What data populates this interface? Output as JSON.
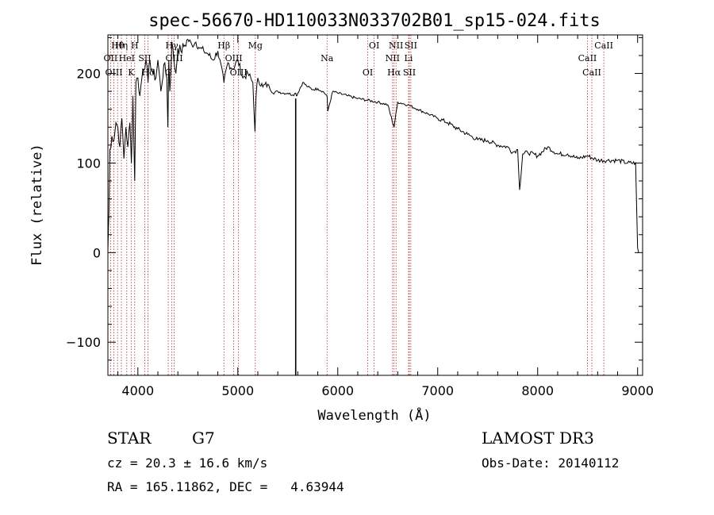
{
  "chart_data": {
    "type": "line",
    "title": "spec-56670-HD110033N033702B01_sp15-024.fits",
    "xlabel": "Wavelength (Å)",
    "ylabel": "Flux (relative)",
    "xlim": [
      3700,
      9050
    ],
    "ylim": [
      -137,
      243
    ],
    "xticks": [
      4000,
      5000,
      6000,
      7000,
      8000,
      9000
    ],
    "yticks": [
      -100,
      0,
      100,
      200
    ],
    "grid": false,
    "series": [
      {
        "name": "spectrum",
        "x": [
          3700,
          3710,
          3720,
          3740,
          3760,
          3780,
          3800,
          3820,
          3840,
          3860,
          3880,
          3900,
          3920,
          3935,
          3950,
          3968,
          3980,
          4000,
          4020,
          4050,
          4080,
          4102,
          4120,
          4150,
          4180,
          4200,
          4230,
          4260,
          4290,
          4300,
          4310,
          4320,
          4340,
          4360,
          4380,
          4400,
          4430,
          4460,
          4500,
          4540,
          4580,
          4620,
          4660,
          4700,
          4750,
          4800,
          4861,
          4900,
          4950,
          5000,
          5050,
          5100,
          5150,
          5172,
          5183,
          5200,
          5250,
          5300,
          5350,
          5400,
          5450,
          5500,
          5550,
          5580,
          5590,
          5600,
          5650,
          5700,
          5750,
          5800,
          5850,
          5893,
          5900,
          5950,
          6000,
          6100,
          6200,
          6300,
          6400,
          6500,
          6563,
          6600,
          6700,
          6800,
          6900,
          7000,
          7100,
          7200,
          7300,
          7400,
          7500,
          7600,
          7700,
          7750,
          7800,
          7820,
          7850,
          7900,
          8000,
          8100,
          8200,
          8300,
          8400,
          8500,
          8600,
          8700,
          8800,
          8900,
          8980,
          9000,
          9010
        ],
        "values": [
          2,
          45,
          115,
          130,
          125,
          145,
          140,
          118,
          150,
          105,
          140,
          118,
          145,
          100,
          175,
          80,
          190,
          195,
          175,
          205,
          215,
          190,
          215,
          200,
          195,
          215,
          180,
          210,
          195,
          140,
          215,
          180,
          235,
          215,
          200,
          228,
          225,
          230,
          238,
          232,
          235,
          228,
          225,
          222,
          215,
          225,
          190,
          212,
          205,
          215,
          195,
          200,
          190,
          135,
          175,
          195,
          185,
          188,
          178,
          180,
          178,
          178,
          176,
          178,
          175,
          178,
          190,
          185,
          182,
          183,
          180,
          175,
          158,
          180,
          178,
          175,
          172,
          170,
          168,
          165,
          140,
          168,
          165,
          160,
          155,
          150,
          145,
          138,
          132,
          126,
          125,
          120,
          118,
          112,
          115,
          70,
          110,
          112,
          108,
          118,
          110,
          110,
          105,
          108,
          103,
          103,
          103,
          100,
          100,
          5,
          0
        ],
        "spikes": [
          {
            "x": 5579,
            "y": -137
          }
        ]
      }
    ],
    "emission_lines": [
      {
        "label": "Hθ",
        "x": 3797
      },
      {
        "label": "OII",
        "x": 3727
      },
      {
        "label": "OIII",
        "x": 3760
      },
      {
        "label": "Hη",
        "x": 3835
      },
      {
        "label": "HeI",
        "x": 3889
      },
      {
        "label": "K",
        "x": 3933
      },
      {
        "label": "H",
        "x": 3968
      },
      {
        "label": "SII",
        "x": 4069
      },
      {
        "label": "Hδ",
        "x": 4102
      },
      {
        "label": "Hγ",
        "x": 4340
      },
      {
        "label": "OIII",
        "x": 4363
      },
      {
        "label": "G",
        "x": 4304
      },
      {
        "label": "Hβ",
        "x": 4861
      },
      {
        "label": "OIII",
        "x": 4959
      },
      {
        "label": "OIII",
        "x": 5007
      },
      {
        "label": "Mg",
        "x": 5175
      },
      {
        "label": "Na",
        "x": 5893
      },
      {
        "label": "OI",
        "x": 6300
      },
      {
        "label": "OI",
        "x": 6364
      },
      {
        "label": "NII",
        "x": 6548
      },
      {
        "label": "Hα",
        "x": 6563
      },
      {
        "label": "NII",
        "x": 6583
      },
      {
        "label": "Li",
        "x": 6708
      },
      {
        "label": "SII",
        "x": 6716
      },
      {
        "label": "SII",
        "x": 6731
      },
      {
        "label": "CaII",
        "x": 8498
      },
      {
        "label": "CaII",
        "x": 8542
      },
      {
        "label": "CaII",
        "x": 8662
      }
    ]
  },
  "info": {
    "object_class": "STAR",
    "subclass": "G7",
    "survey": "LAMOST DR3",
    "cz": "cz = 20.3 ± 16.6 km/s",
    "obs_date": "Obs-Date: 20140112",
    "coords": "RA = 165.11862, DEC =   4.63944"
  }
}
